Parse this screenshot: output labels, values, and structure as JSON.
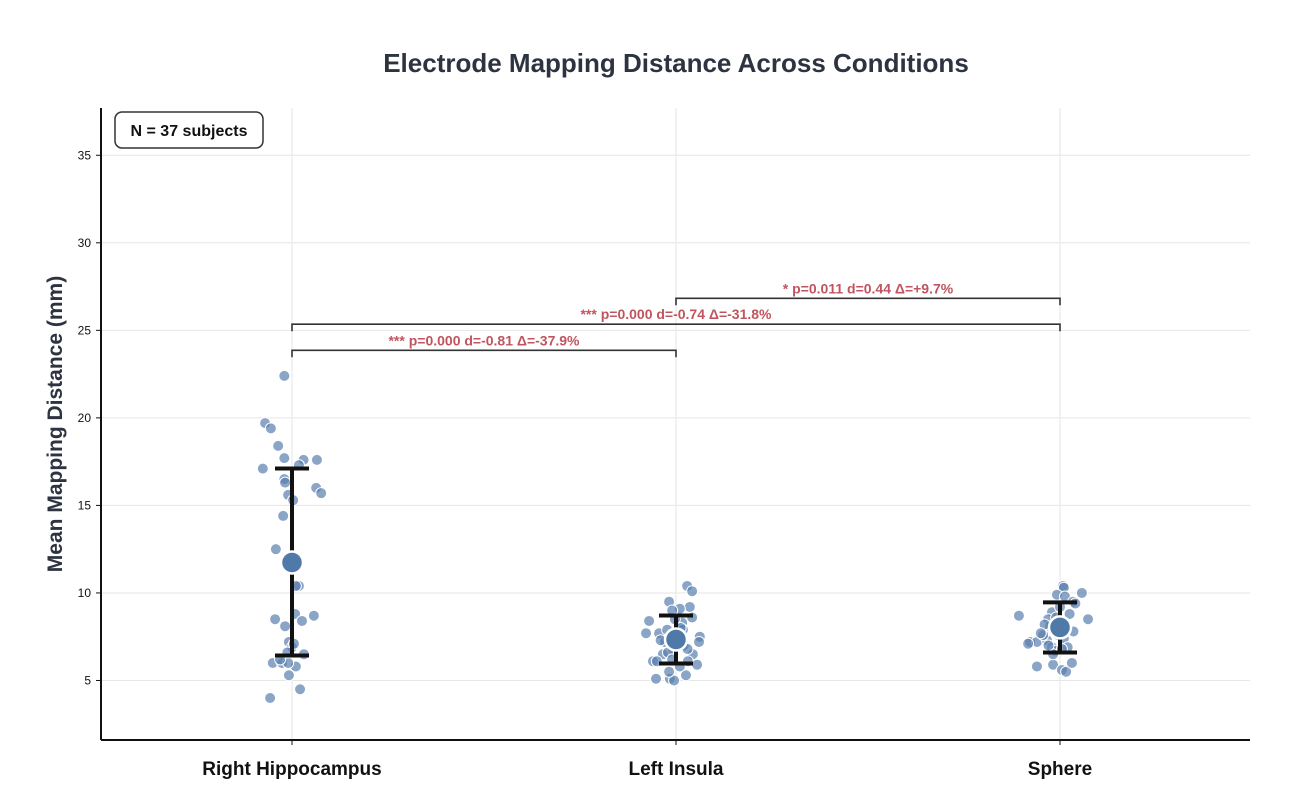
{
  "chart_data": {
    "type": "scatter",
    "title": "Electrode Mapping Distance Across Conditions",
    "xlabel": "",
    "ylabel": "Mean Mapping Distance (mm)",
    "ylim": [
      1.6,
      37.7
    ],
    "yticks": [
      5,
      10,
      15,
      20,
      25,
      30,
      35
    ],
    "grid": true,
    "annotation_box": "N = 37 subjects",
    "colors": {
      "point": "#5a7fae",
      "mean": "#4f79a8",
      "errorbar": "#111111",
      "sig_text": "#c0555f",
      "bracket": "#333333",
      "title": "#2d3340"
    },
    "categories": [
      "Right Hippocampus",
      "Left Insula",
      "Sphere"
    ],
    "groups": [
      {
        "mean": 11.74,
        "err_low": 6.43,
        "err_high": 17.11,
        "points": [
          [
            -0.02,
            22.4
          ],
          [
            -0.07,
            19.7
          ],
          [
            -0.055,
            19.4
          ],
          [
            -0.036,
            18.4
          ],
          [
            -0.02,
            17.7
          ],
          [
            0.03,
            17.6
          ],
          [
            0.065,
            17.6
          ],
          [
            0.018,
            17.3
          ],
          [
            -0.076,
            17.1
          ],
          [
            -0.02,
            16.5
          ],
          [
            -0.018,
            16.3
          ],
          [
            0.063,
            16.0
          ],
          [
            0.076,
            15.7
          ],
          [
            -0.01,
            15.6
          ],
          [
            0.003,
            15.3
          ],
          [
            -0.023,
            14.4
          ],
          [
            -0.042,
            12.5
          ],
          [
            0.018,
            10.4
          ],
          [
            0.01,
            10.4
          ],
          [
            -0.044,
            8.5
          ],
          [
            0.057,
            8.7
          ],
          [
            0.008,
            8.8
          ],
          [
            -0.018,
            8.1
          ],
          [
            0.026,
            8.4
          ],
          [
            -0.008,
            7.2
          ],
          [
            0.0,
            6.9
          ],
          [
            0.031,
            6.5
          ],
          [
            -0.05,
            6.0
          ],
          [
            -0.026,
            6.0
          ],
          [
            0.01,
            5.8
          ],
          [
            -0.008,
            5.3
          ],
          [
            0.021,
            4.5
          ],
          [
            -0.057,
            4.0
          ],
          [
            -0.01,
            6.0
          ],
          [
            -0.031,
            6.2
          ],
          [
            0.005,
            7.1
          ],
          [
            -0.012,
            6.6
          ]
        ]
      },
      {
        "mean": 7.34,
        "err_low": 5.97,
        "err_high": 8.71,
        "points": [
          [
            0.029,
            10.4
          ],
          [
            0.042,
            10.1
          ],
          [
            -0.018,
            9.5
          ],
          [
            0.036,
            9.2
          ],
          [
            0.01,
            9.1
          ],
          [
            -0.01,
            9.0
          ],
          [
            -0.07,
            8.4
          ],
          [
            0.042,
            8.6
          ],
          [
            0.016,
            8.3
          ],
          [
            -0.078,
            7.7
          ],
          [
            -0.044,
            7.7
          ],
          [
            0.062,
            7.5
          ],
          [
            0.06,
            7.2
          ],
          [
            0.044,
            6.5
          ],
          [
            -0.034,
            6.5
          ],
          [
            -0.06,
            6.1
          ],
          [
            -0.05,
            6.1
          ],
          [
            0.031,
            6.1
          ],
          [
            0.055,
            5.9
          ],
          [
            -0.052,
            5.1
          ],
          [
            -0.016,
            5.1
          ],
          [
            -0.005,
            5.0
          ],
          [
            0.026,
            5.3
          ],
          [
            -0.018,
            5.5
          ],
          [
            0.01,
            5.8
          ],
          [
            -0.008,
            6.8
          ],
          [
            0.005,
            7.5
          ],
          [
            -0.029,
            7.2
          ],
          [
            0.018,
            7.9
          ],
          [
            -0.003,
            8.5
          ],
          [
            -0.023,
            7.9
          ],
          [
            -0.021,
            6.6
          ],
          [
            0.02,
            7.0
          ],
          [
            -0.04,
            7.3
          ],
          [
            0.03,
            6.8
          ],
          [
            -0.01,
            6.2
          ],
          [
            0.012,
            8.0
          ]
        ]
      },
      {
        "mean": 8.03,
        "err_low": 6.6,
        "err_high": 9.46,
        "points": [
          [
            0.008,
            10.4
          ],
          [
            0.01,
            10.3
          ],
          [
            0.057,
            10.0
          ],
          [
            -0.008,
            9.9
          ],
          [
            0.013,
            9.8
          ],
          [
            0.034,
            9.5
          ],
          [
            -0.107,
            8.7
          ],
          [
            0.073,
            8.5
          ],
          [
            -0.021,
            8.9
          ],
          [
            -0.031,
            8.5
          ],
          [
            -0.078,
            7.2
          ],
          [
            -0.06,
            7.2
          ],
          [
            -0.083,
            7.1
          ],
          [
            -0.034,
            7.3
          ],
          [
            -0.021,
            6.9
          ],
          [
            -0.06,
            5.8
          ],
          [
            -0.018,
            5.9
          ],
          [
            0.005,
            5.6
          ],
          [
            0.016,
            5.5
          ],
          [
            0.031,
            6.0
          ],
          [
            -0.013,
            6.7
          ],
          [
            0.0,
            9.2
          ],
          [
            -0.026,
            8.1
          ],
          [
            -0.044,
            7.6
          ],
          [
            -0.005,
            7.6
          ],
          [
            0.018,
            7.9
          ],
          [
            -0.018,
            6.5
          ],
          [
            0.025,
            8.8
          ],
          [
            -0.03,
            7.0
          ],
          [
            0.01,
            7.4
          ],
          [
            0.035,
            7.8
          ],
          [
            -0.04,
            8.2
          ],
          [
            0.02,
            6.9
          ],
          [
            -0.01,
            8.6
          ],
          [
            0.04,
            9.4
          ],
          [
            -0.05,
            7.7
          ],
          [
            0.005,
            6.8
          ]
        ]
      }
    ],
    "comparisons": [
      {
        "from": 0,
        "to": 1,
        "y": 23.86,
        "label": "***  p=0.000  d=-0.81  Δ=-37.9%"
      },
      {
        "from": 0,
        "to": 2,
        "y": 25.35,
        "label": "***  p=0.000  d=-0.74  Δ=-31.8%"
      },
      {
        "from": 1,
        "to": 2,
        "y": 26.83,
        "label": "*  p=0.011  d=0.44  Δ=+9.7%"
      }
    ]
  }
}
